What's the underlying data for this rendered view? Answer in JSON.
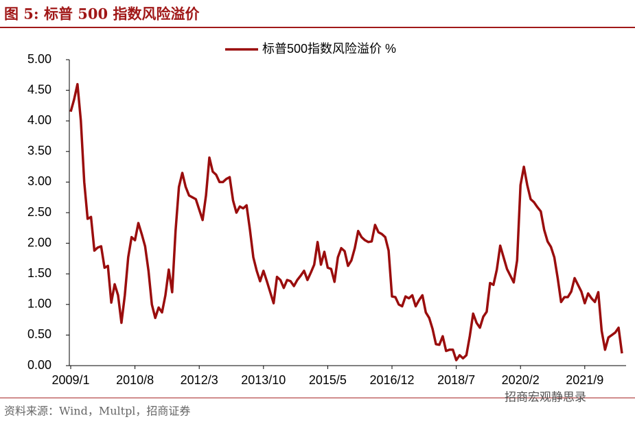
{
  "chart_data": {
    "type": "line",
    "title": "图 5:  标普 500 指数风险溢价",
    "source": "资料来源：Wind，Multpl，招商证券",
    "watermark": "招商宏观静思录",
    "legend": "top",
    "categories": [
      "2009/1",
      null,
      null,
      null,
      null,
      null,
      null,
      null,
      null,
      null,
      null,
      null,
      null,
      null,
      null,
      null,
      null,
      null,
      null,
      "2010/8",
      null,
      null,
      null,
      null,
      null,
      null,
      null,
      null,
      null,
      null,
      null,
      null,
      null,
      null,
      null,
      null,
      null,
      null,
      "2012/3",
      null,
      null,
      null,
      null,
      null,
      null,
      null,
      null,
      null,
      null,
      null,
      null,
      null,
      null,
      null,
      null,
      null,
      null,
      "2013/10",
      null,
      null,
      null,
      null,
      null,
      null,
      null,
      null,
      null,
      null,
      null,
      null,
      null,
      null,
      null,
      null,
      null,
      null,
      "2015/5",
      null,
      null,
      null,
      null,
      null,
      null,
      null,
      null,
      null,
      null,
      null,
      null,
      null,
      null,
      null,
      null,
      null,
      null,
      "2016/12",
      null,
      null,
      null,
      null,
      null,
      null,
      null,
      null,
      null,
      null,
      null,
      null,
      null,
      null,
      null,
      null,
      null,
      null,
      "2018/7",
      null,
      null,
      null,
      null,
      null,
      null,
      null,
      null,
      null,
      null,
      null,
      null,
      null,
      null,
      null,
      null,
      null,
      null,
      "2020/2",
      null,
      null,
      null,
      null,
      null,
      null,
      null,
      null,
      null,
      null,
      null,
      null,
      null,
      null,
      null,
      null,
      null,
      null,
      "2021/9",
      null,
      null,
      null,
      null,
      null,
      null,
      null,
      null,
      null,
      null,
      null
    ],
    "series": [
      {
        "name": "标普500指数风险溢价 %",
        "color": "#9a0d0d",
        "values": [
          4.15,
          4.35,
          4.6,
          4.0,
          3.0,
          2.4,
          2.43,
          1.88,
          1.93,
          1.95,
          1.6,
          1.63,
          1.03,
          1.33,
          1.15,
          0.7,
          1.15,
          1.77,
          2.1,
          2.05,
          2.33,
          2.15,
          1.95,
          1.55,
          1.0,
          0.78,
          0.95,
          0.87,
          1.15,
          1.57,
          1.2,
          2.2,
          2.92,
          3.15,
          2.92,
          2.78,
          2.75,
          2.72,
          2.55,
          2.38,
          2.78,
          3.4,
          3.17,
          3.12,
          3.0,
          3.0,
          3.05,
          3.08,
          2.7,
          2.5,
          2.6,
          2.57,
          2.62,
          2.22,
          1.77,
          1.55,
          1.38,
          1.55,
          1.38,
          1.2,
          1.02,
          1.45,
          1.4,
          1.27,
          1.4,
          1.38,
          1.3,
          1.4,
          1.47,
          1.55,
          1.4,
          1.52,
          1.65,
          2.02,
          1.65,
          1.86,
          1.6,
          1.58,
          1.37,
          1.77,
          1.92,
          1.87,
          1.63,
          1.72,
          1.92,
          2.2,
          2.1,
          2.05,
          2.02,
          2.03,
          2.3,
          2.18,
          2.15,
          2.1,
          1.88,
          1.13,
          1.12,
          1.0,
          0.97,
          1.13,
          1.1,
          1.15,
          0.97,
          1.07,
          1.15,
          0.87,
          0.78,
          0.6,
          0.35,
          0.34,
          0.48,
          0.24,
          0.26,
          0.26,
          0.09,
          0.17,
          0.12,
          0.17,
          0.48,
          0.85,
          0.7,
          0.62,
          0.8,
          0.88,
          1.35,
          1.32,
          1.57,
          1.96,
          1.77,
          1.58,
          1.47,
          1.36,
          1.72,
          2.95,
          3.25,
          2.95,
          2.72,
          2.67,
          2.59,
          2.52,
          2.22,
          2.03,
          1.94,
          1.77,
          1.43,
          1.04,
          1.12,
          1.12,
          1.21,
          1.43,
          1.32,
          1.21,
          1.02,
          1.18,
          1.1,
          1.04,
          1.2,
          0.57,
          0.26,
          0.46,
          0.5,
          0.54,
          0.62,
          0.2
        ]
      }
    ],
    "ylim": [
      0,
      5
    ],
    "yticks": [
      {
        "value": 0,
        "label": "0.00"
      },
      {
        "value": 0.5,
        "label": "0.50"
      },
      {
        "value": 1,
        "label": "1.00"
      },
      {
        "value": 1.5,
        "label": "1.50"
      },
      {
        "value": 2,
        "label": "2.00"
      },
      {
        "value": 2.5,
        "label": "2.50"
      },
      {
        "value": 3,
        "label": "3.00"
      },
      {
        "value": 3.5,
        "label": "3.50"
      },
      {
        "value": 4,
        "label": "4.00"
      },
      {
        "value": 4.5,
        "label": "4.50"
      },
      {
        "value": 5,
        "label": "5.00"
      }
    ],
    "grid": false
  }
}
